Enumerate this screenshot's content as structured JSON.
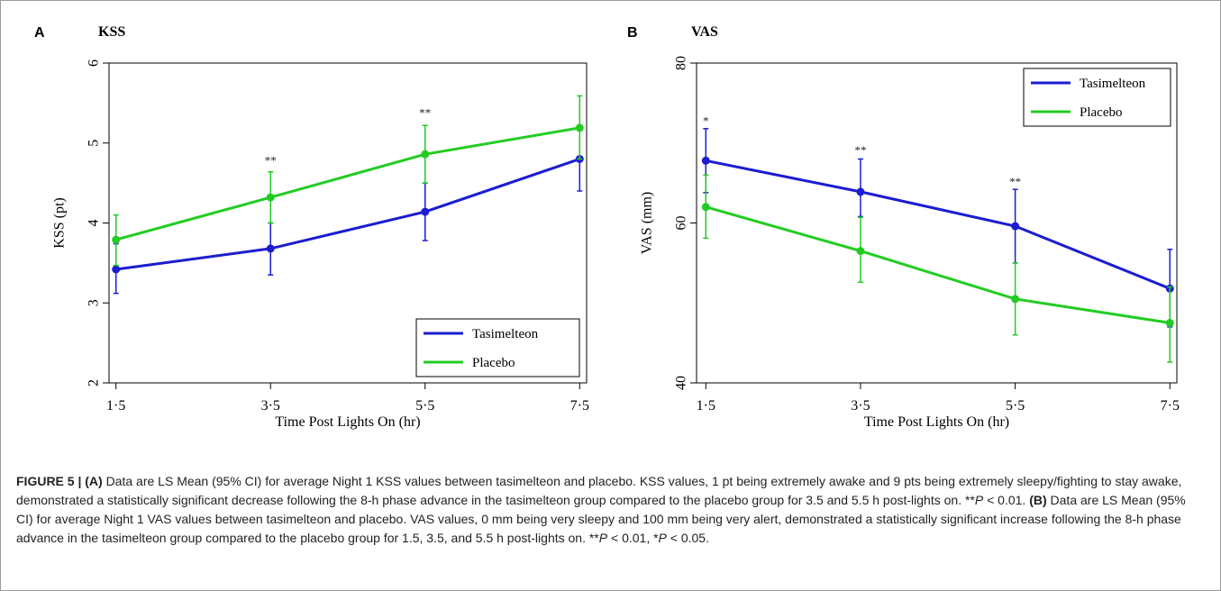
{
  "chart_data": [
    {
      "type": "line",
      "panel_letter": "A",
      "title": "KSS",
      "xlabel": "Time Post Lights On (hr)",
      "ylabel": "KSS (pt)",
      "x": [
        1.5,
        3.5,
        5.5,
        7.5
      ],
      "x_tick_labels": [
        "1·5",
        "3·5",
        "5·5",
        "7·5"
      ],
      "ylim": [
        2,
        6
      ],
      "y_ticks": [
        2,
        3,
        4,
        5,
        6
      ],
      "series": [
        {
          "name": "Tasimelteon",
          "color": "#1c1cd0",
          "values": [
            3.42,
            3.68,
            4.14,
            4.8
          ],
          "ci_low": [
            3.12,
            3.35,
            3.78,
            4.4
          ],
          "ci_high": [
            3.74,
            4.0,
            4.5,
            4.8
          ]
        },
        {
          "name": "Placebo",
          "color": "#22cc22",
          "values": [
            3.79,
            4.32,
            4.86,
            5.19
          ],
          "ci_low": [
            3.47,
            4.0,
            4.5,
            4.8
          ],
          "ci_high": [
            4.1,
            4.64,
            5.22,
            5.59
          ]
        }
      ],
      "annotations": [
        {
          "x": 3.5,
          "y": 4.73,
          "text": "**"
        },
        {
          "x": 5.5,
          "y": 5.33,
          "text": "**"
        }
      ],
      "legend_position": "bottom-right",
      "grid": false
    },
    {
      "type": "line",
      "panel_letter": "B",
      "title": "VAS",
      "xlabel": "Time Post Lights On (hr)",
      "ylabel": "VAS (mm)",
      "x": [
        1.5,
        3.5,
        5.5,
        7.5
      ],
      "x_tick_labels": [
        "1·5",
        "3·5",
        "5·5",
        "7·5"
      ],
      "ylim": [
        40,
        80
      ],
      "y_ticks": [
        40,
        60,
        80
      ],
      "series": [
        {
          "name": "Tasimelteon",
          "color": "#1c1cd0",
          "values": [
            67.8,
            63.9,
            59.6,
            51.8
          ],
          "ci_low": [
            63.8,
            60.8,
            55.0,
            47.0
          ],
          "ci_high": [
            71.8,
            68.0,
            64.2,
            56.7
          ]
        },
        {
          "name": "Placebo",
          "color": "#22cc22",
          "values": [
            62.0,
            56.5,
            50.5,
            47.5
          ],
          "ci_low": [
            58.1,
            52.6,
            46.0,
            42.6
          ],
          "ci_high": [
            66.0,
            60.7,
            55.0,
            52.0
          ]
        }
      ],
      "annotations": [
        {
          "x": 1.5,
          "y": 72.3,
          "text": "*"
        },
        {
          "x": 3.5,
          "y": 68.6,
          "text": "**"
        },
        {
          "x": 5.5,
          "y": 64.7,
          "text": "**"
        }
      ],
      "legend_position": "top-right",
      "grid": false
    }
  ],
  "caption": {
    "figure_label": "FIGURE 5 | ",
    "a_label": "(A)",
    "a_text": " Data are LS Mean (95% CI) for average Night 1 KSS values between tasimelteon and placebo. KSS values, 1 pt being extremely awake and 9 pts being extremely sleepy/fighting to stay awake, demonstrated a statistically significant decrease following the 8-h phase advance in the tasimelteon group compared to the placebo group for 3.5 and 5.5 h post-lights on. **",
    "p_symbol": "P",
    "a_threshold": " < 0.01. ",
    "b_label": "(B)",
    "b_text": " Data are LS Mean (95% CI) for average Night 1 VAS values between tasimelteon and placebo. VAS values, 0 mm being very sleepy and 100 mm being very alert, demonstrated a statistically significant increase following the 8-h phase advance in the tasimelteon group compared to the placebo group for 1.5, 3.5, and 5.5 h post-lights on. **",
    "b_threshold_1": " < 0.01, *",
    "b_threshold_2": " < 0.05."
  }
}
